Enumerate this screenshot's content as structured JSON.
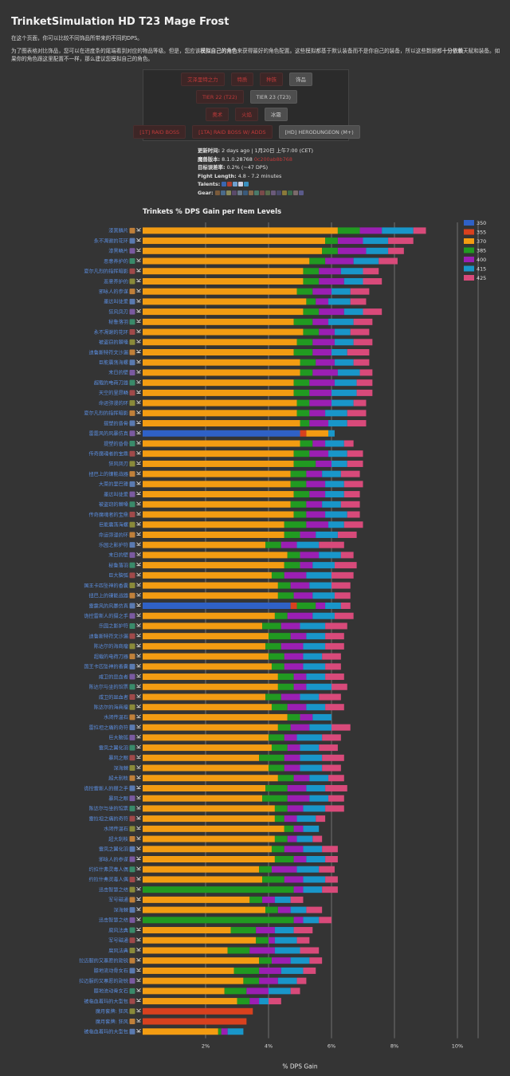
{
  "header": {
    "title": "TrinketSimulation HD T23 Mage Frost",
    "intro1": "在这个页面，你可以比较不同饰品所带来的不同的DPS。",
    "intro2_a": "为了图表格对比饰品，您可以在进度条的尾端看到对应的物品等级。但是，您应该",
    "intro2_b": "模拟自己的角色",
    "intro2_c": "来获得最好的角色配置。这些模拟都基于默认装备而不是你自己的装备，所以这些数据都",
    "intro2_d": "十分依赖",
    "intro2_e": "天赋和装备。如果你的角色跟这里配置不一样，那么建议您模拟自己的角色。"
  },
  "filters": {
    "row1": [
      {
        "label": "艾泽里特之力",
        "active": false
      },
      {
        "label": "特质",
        "active": false
      },
      {
        "label": "种族",
        "active": false
      },
      {
        "label": "饰品",
        "active": true
      }
    ],
    "row2": [
      {
        "label": "TIER 22 (T22)",
        "active": false
      },
      {
        "label": "TIER 23 (T23)",
        "active": true
      }
    ],
    "row3": [
      {
        "label": "奥术",
        "active": false
      },
      {
        "label": "火焰",
        "active": false
      },
      {
        "label": "冰霜",
        "active": true
      }
    ],
    "row4": [
      {
        "label": "[1T] RAID BOSS",
        "active": false
      },
      {
        "label": "[1TA] RAID BOSS W/ ADDS",
        "active": false
      },
      {
        "label": "[HD] HERODUNGEON (M+)",
        "active": true
      }
    ]
  },
  "meta": {
    "updated_label": "更新时间:",
    "updated_value": "2 days ago | 1月20日 上午7:00 (CET)",
    "version_label": "魔兽版本:",
    "version_value": "8.1.0.28768",
    "version_extra": "0c200ab8b768",
    "error_label": "目标误差率:",
    "error_value": "0.2% (~47 DPS)",
    "fight_label": "Fight Length:",
    "fight_value": "4.8 - 7.2 minutes",
    "talents_label": "Talents:",
    "gear_label": "Gear:"
  },
  "chart_data": {
    "type": "bar",
    "stacked": true,
    "orientation": "horizontal",
    "title": "Trinkets % DPS Gain per Item Levels",
    "xlabel": "% DPS Gain",
    "xlim": [
      0,
      10
    ],
    "xticks": [
      "2%",
      "4%",
      "6%",
      "8%",
      "10%"
    ],
    "legend_position": "right",
    "series_names": [
      "350",
      "355",
      "370",
      "385",
      "400",
      "415",
      "425"
    ],
    "series_colors": [
      "#2f61c6",
      "#d8411e",
      "#f39c12",
      "#219a21",
      "#9b1fb3",
      "#1996c9",
      "#d84a7a"
    ],
    "categories": [
      "漆黑鳞片",
      "永不凋谢的花环",
      "漆黑鳞片",
      "恶意养护的",
      "夏尔凡烈的指挥暗影",
      "恶意养护的",
      "邪咏人的参谋",
      "墨达叫徒爱",
      "狂风凤刃",
      "秘鲁落羽",
      "永不凋谢的花环",
      "被盗窃的棘嗓",
      "迪鲁斯特符文沙漏",
      "巨能震荡海螺",
      "末日的壁",
      "超载的电荷刀器",
      "天空的里昂鳞",
      "命运弥漫的环",
      "夏尔凡烈的指挥暗影",
      "提塑的昏骨",
      "雷霆风的风暴仿真",
      "提塑的昏骨",
      "传奇魔魂者的宝鼎",
      "狂风凤刃",
      "扭巴上的镍能战器",
      "大菜的里巴锤",
      "墨达叫徒爱",
      "被盗窃的棘嗓",
      "传奇魔魂者的宝鼎",
      "巨能震荡海螺",
      "命运弥漫的环",
      "乐园之影护符",
      "末日的壁",
      "秘鲁落羽",
      "巨大脑弧",
      "国王卡匹坠神的香囊",
      "扭巴上的镍能战器",
      "雷霆风的风暴仿真",
      "诡控雷斯人的摄之手",
      "乐园之影护符",
      "迪鲁斯特符文沙漏",
      "陈达尔的海商瘤",
      "超载的电荷刀器",
      "国王卡匹坠神的香囊",
      "咸卫的显血者",
      "陈达尔与坐的馆票",
      "咸卫的显血者",
      "陈达尔的海商瘤",
      "水闭传温石",
      "雷拉坦之痛的奇符",
      "巨大脑弧",
      "雷凤之翼化羽",
      "暴风之眼",
      "深海棘",
      "超大刮枝",
      "诡控雷斯人的摄之手",
      "暴风之眼",
      "陈达尔与坐的馆票",
      "雷拉坦之痛的奇符",
      "水闭传温石",
      "超大刮枝",
      "雷凤之翼化羽",
      "邪咏人的参谋",
      "约拉什弗灵毒人偶",
      "约拉什弗灵毒人偶",
      "迅击智慧之结",
      "军号磁通",
      "深海棘",
      "迅击智慧之结",
      "腐风法典",
      "军号磁通",
      "腐风法典",
      "拉迈服的又寨愿的勋锐",
      "膝地流动骨女石",
      "拉迈服的又寨愿的勋锐",
      "膝地流动骨女石",
      "被临血着玛的大型包",
      "魔月套牌: 狂风",
      "魔月套牌: 狂风",
      "被临血着玛的大型包"
    ],
    "series": [
      {
        "name": "350",
        "values": [
          0,
          0,
          0,
          0,
          0,
          0,
          0,
          0,
          0,
          0,
          0,
          0,
          0,
          0,
          0,
          0,
          0,
          0,
          0,
          0,
          5.0,
          0,
          0,
          0,
          0,
          0,
          0,
          0,
          0,
          0,
          0,
          0,
          0,
          0,
          0,
          0,
          0,
          4.7,
          0,
          0,
          0,
          0,
          0,
          0,
          0,
          0,
          0,
          0,
          0,
          0,
          0,
          0,
          0,
          0,
          0,
          0,
          0,
          0,
          0,
          0,
          0,
          0,
          0,
          0,
          0,
          0,
          0,
          0,
          0,
          0,
          0,
          0,
          0,
          0,
          0,
          0,
          0,
          0,
          0,
          0
        ]
      },
      {
        "name": "355",
        "values": [
          0,
          0,
          0,
          0,
          0,
          0,
          0,
          0,
          0,
          0,
          0,
          0,
          0,
          0,
          0,
          0,
          0,
          0,
          0,
          0,
          0.2,
          0,
          0,
          0,
          0,
          0,
          0,
          0,
          0,
          0,
          0,
          0,
          0,
          0,
          0,
          0,
          0,
          0.2,
          0,
          0,
          0,
          0,
          0,
          0,
          0,
          0,
          0,
          0,
          0,
          0,
          0,
          0,
          0,
          0,
          0,
          0,
          0,
          0,
          0,
          0,
          0,
          0,
          0,
          0,
          0,
          0,
          0,
          0,
          0,
          0,
          0,
          0,
          0,
          0,
          0,
          0,
          0,
          3.5,
          3.3,
          0
        ]
      },
      {
        "name": "370",
        "values": [
          6.2,
          5.8,
          5.7,
          5.3,
          5.1,
          5.1,
          4.9,
          5.2,
          5.1,
          4.8,
          5.1,
          4.9,
          4.8,
          5.0,
          5.0,
          4.8,
          4.8,
          4.9,
          4.9,
          5.0,
          0.7,
          5.0,
          4.8,
          4.8,
          4.7,
          4.7,
          4.8,
          4.7,
          4.8,
          4.5,
          4.5,
          3.9,
          4.6,
          4.5,
          4.1,
          4.3,
          4.3,
          0,
          4.2,
          3.8,
          4.0,
          3.9,
          4.0,
          4.1,
          4.3,
          4.3,
          3.9,
          4.1,
          4.6,
          4.3,
          4.0,
          4.1,
          3.7,
          4.0,
          4.3,
          3.9,
          3.8,
          4.2,
          4.2,
          4.5,
          4.2,
          4.1,
          4.2,
          3.7,
          3.8,
          0,
          3.4,
          3.9,
          0,
          2.8,
          3.6,
          2.7,
          3.7,
          2.9,
          3.2,
          2.6,
          3.0,
          0,
          0,
          2.4
        ]
      },
      {
        "name": "385",
        "values": [
          0.7,
          0.4,
          0.5,
          0.5,
          0.5,
          0.5,
          0.5,
          0.3,
          0.5,
          0.6,
          0.5,
          0.5,
          0.6,
          0.5,
          0.4,
          0.5,
          0.5,
          0.4,
          0.4,
          0.3,
          0.0,
          0.4,
          0.5,
          0.7,
          0.5,
          0.5,
          0.5,
          0.5,
          0.4,
          0.7,
          0.5,
          0.5,
          0.4,
          0.5,
          0.4,
          0.4,
          0.5,
          0.6,
          0.4,
          0.6,
          0.7,
          0.5,
          0.5,
          0.4,
          0.5,
          0.5,
          0.5,
          0.5,
          0.4,
          0.4,
          0.5,
          0.5,
          0.8,
          0.5,
          0.5,
          0.7,
          0.8,
          0.4,
          0.3,
          0.3,
          0.4,
          0.4,
          0.6,
          0.4,
          0.7,
          4.8,
          0.4,
          0.4,
          4.8,
          0.8,
          0.4,
          0.7,
          0.4,
          0.8,
          0.5,
          0.7,
          0.4,
          0,
          0,
          0.1
        ]
      },
      {
        "name": "400",
        "values": [
          0.7,
          0.8,
          0.9,
          0.9,
          0.7,
          0.8,
          0.6,
          0.4,
          0.8,
          0.5,
          0.5,
          0.7,
          0.6,
          0.6,
          0.8,
          0.8,
          0.7,
          0.7,
          0.5,
          0.6,
          0.0,
          0.4,
          0.6,
          0.5,
          0.5,
          0.6,
          0.5,
          0.5,
          0.6,
          0.7,
          0.5,
          0.5,
          0.6,
          0.4,
          0.7,
          0.6,
          0.6,
          0.3,
          0.8,
          0.6,
          0.5,
          0.7,
          0.6,
          0.6,
          0.4,
          0.4,
          0.6,
          0.6,
          0.4,
          0.6,
          0.4,
          0.4,
          0.5,
          0.5,
          0.5,
          0.6,
          0.7,
          0.5,
          0.4,
          0.3,
          0.3,
          0.6,
          0.4,
          0.8,
          0.6,
          0.3,
          0.4,
          0.4,
          0.3,
          0.6,
          0.2,
          0.8,
          0.6,
          0.7,
          0.6,
          0.7,
          0.3,
          0,
          0,
          0.2
        ]
      },
      {
        "name": "415",
        "values": [
          1.0,
          0.8,
          0.7,
          0.8,
          0.7,
          0.6,
          0.6,
          0.7,
          0.6,
          0.8,
          0.5,
          0.6,
          0.5,
          0.6,
          0.7,
          0.7,
          0.8,
          0.7,
          0.7,
          0.6,
          0.2,
          0.6,
          0.6,
          0.5,
          0.6,
          0.6,
          0.6,
          0.6,
          0.7,
          0.5,
          0.7,
          0.7,
          0.7,
          0.7,
          0.8,
          0.7,
          0.7,
          0.5,
          0.7,
          0.8,
          0.6,
          0.7,
          0.6,
          0.7,
          0.6,
          0.8,
          0.6,
          0.6,
          0.6,
          0.7,
          0.8,
          0.6,
          0.7,
          0.7,
          0.6,
          0.6,
          0.6,
          0.7,
          0.6,
          0.5,
          0.5,
          0.6,
          0.6,
          0.7,
          0.7,
          0.6,
          0.5,
          0.5,
          0.5,
          0.6,
          0.7,
          0.8,
          0.6,
          0.7,
          0.6,
          0.7,
          0.3,
          0,
          0,
          0.5
        ]
      },
      {
        "name": "425",
        "values": [
          0.4,
          0.8,
          0.5,
          0.6,
          0.5,
          0.6,
          0.6,
          0.5,
          0.6,
          0.6,
          0.6,
          0.6,
          0.7,
          0.5,
          0.4,
          0.5,
          0.5,
          0.4,
          0.6,
          0.6,
          0.0,
          0.3,
          0.5,
          0.5,
          0.6,
          0.6,
          0.5,
          0.6,
          0.4,
          0.6,
          0.6,
          0.8,
          0.4,
          0.7,
          0.7,
          0.6,
          0.5,
          0.3,
          0.6,
          0.7,
          0.6,
          0.6,
          0.6,
          0.5,
          0.6,
          0.5,
          0.7,
          0.6,
          0.0,
          0.6,
          0.6,
          0.6,
          0.7,
          0.6,
          0.5,
          0.7,
          0.5,
          0.6,
          0.3,
          0.0,
          0.3,
          0.5,
          0.4,
          0.5,
          0.4,
          0.5,
          0.4,
          0.5,
          0.4,
          0.6,
          0.4,
          0.6,
          0.4,
          0.4,
          0.3,
          0.3,
          0.4,
          0,
          0,
          0
        ]
      }
    ]
  }
}
